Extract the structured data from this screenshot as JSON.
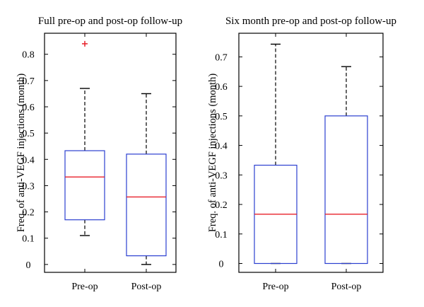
{
  "chart_data": [
    {
      "type": "boxplot",
      "title": "Full pre-op and post-op follow-up",
      "xlabel": "",
      "ylabel": "Freq. of anti-VEGF injections (month)",
      "ylim": [
        -0.03,
        0.88
      ],
      "yticks": [
        0,
        0.1,
        0.2,
        0.3,
        0.4,
        0.5,
        0.6,
        0.7,
        0.8
      ],
      "ytick_labels": [
        "0",
        "0.1",
        "0.2",
        "0.3",
        "0.4",
        "0.5",
        "0.6",
        "0.7",
        "0.8"
      ],
      "categories": [
        "Pre-op",
        "Post-op"
      ],
      "boxes": [
        {
          "category": "Pre-op",
          "whisker_low": 0.11,
          "q1": 0.17,
          "median": 0.333,
          "q3": 0.433,
          "whisker_high": 0.67,
          "outliers": [
            0.84
          ]
        },
        {
          "category": "Post-op",
          "whisker_low": 0.0,
          "q1": 0.033,
          "median": 0.257,
          "q3": 0.42,
          "whisker_high": 0.65,
          "outliers": []
        }
      ],
      "colors": {
        "box": "#2b3fd0",
        "median": "#e8202a",
        "outlier": "#e8202a",
        "whisker": "#000000"
      }
    },
    {
      "type": "boxplot",
      "title": "Six month pre-op and post-op follow-up",
      "xlabel": "",
      "ylabel": "Freq. of anti-VEGF injections (month)",
      "ylim": [
        -0.03,
        0.78
      ],
      "yticks": [
        0,
        0.1,
        0.2,
        0.3,
        0.4,
        0.5,
        0.6,
        0.7
      ],
      "ytick_labels": [
        "0",
        "0.1",
        "0.2",
        "0.3",
        "0.4",
        "0.5",
        "0.6",
        "0.7"
      ],
      "categories": [
        "Pre-op",
        "Post-op"
      ],
      "boxes": [
        {
          "category": "Pre-op",
          "whisker_low": 0.0,
          "q1": 0.0,
          "median": 0.167,
          "q3": 0.333,
          "whisker_high": 0.743,
          "outliers": []
        },
        {
          "category": "Post-op",
          "whisker_low": 0.0,
          "q1": 0.0,
          "median": 0.167,
          "q3": 0.5,
          "whisker_high": 0.667,
          "outliers": []
        }
      ],
      "colors": {
        "box": "#2b3fd0",
        "median": "#e8202a",
        "outlier": "#e8202a",
        "whisker": "#000000"
      }
    }
  ]
}
